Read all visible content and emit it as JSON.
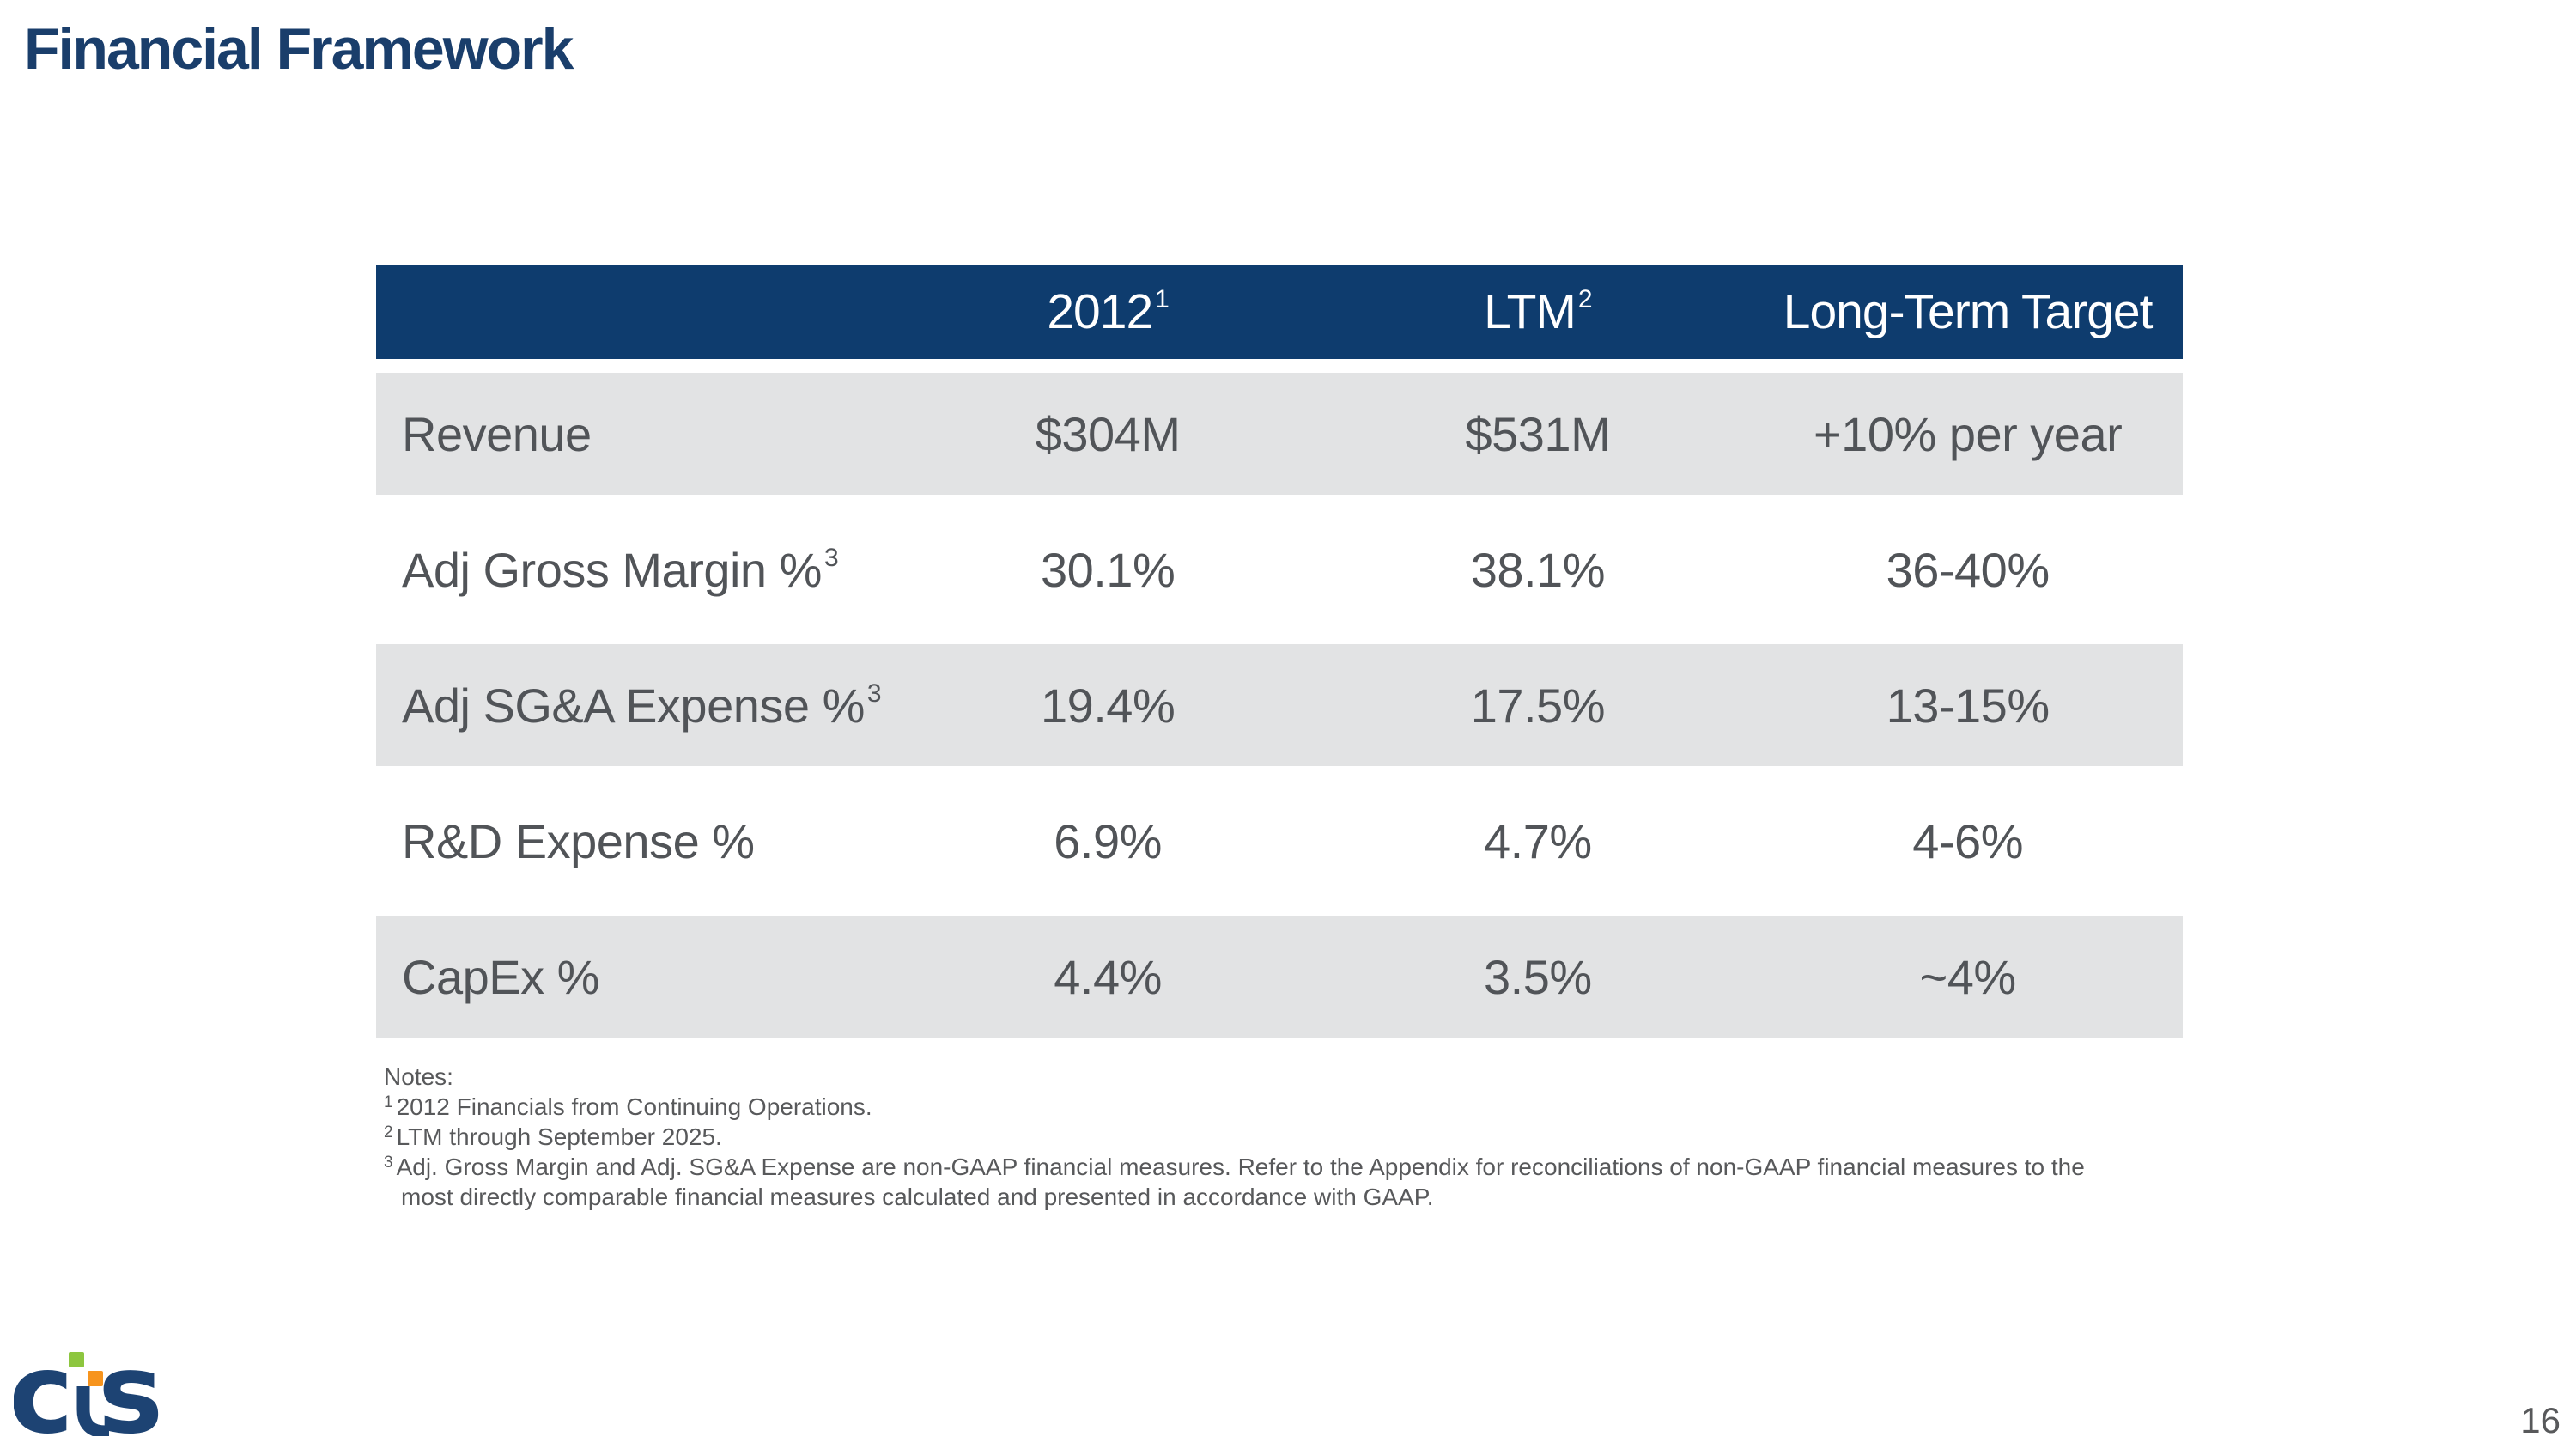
{
  "slide": {
    "title": "Financial Framework",
    "page_number": "16"
  },
  "colors": {
    "header_navy": "#0e3c6e",
    "title_navy": "#1a3e6b",
    "band_gray": "#e2e3e4",
    "body_text_gray": "#515458",
    "note_gray": "#58595b",
    "logo_navy": "#1d4373",
    "logo_green": "#8dc63f",
    "logo_orange": "#f7941d"
  },
  "table": {
    "columns": [
      {
        "label": "",
        "sup": ""
      },
      {
        "label": "2012",
        "sup": "1"
      },
      {
        "label": "LTM",
        "sup": "2"
      },
      {
        "label": "Long-Term Target",
        "sup": ""
      }
    ],
    "rows": [
      {
        "label": "Revenue",
        "sup": "",
        "values": [
          "$304M",
          "$531M",
          "+10% per year"
        ],
        "shaded": true
      },
      {
        "label": "Adj Gross Margin %",
        "sup": "3",
        "values": [
          "30.1%",
          "38.1%",
          "36-40%"
        ],
        "shaded": false
      },
      {
        "label": "Adj SG&A Expense %",
        "sup": "3",
        "values": [
          "19.4%",
          "17.5%",
          "13-15%"
        ],
        "shaded": true
      },
      {
        "label": "R&D Expense %",
        "sup": "",
        "values": [
          "6.9%",
          "4.7%",
          "4-6%"
        ],
        "shaded": false
      },
      {
        "label": "CapEx %",
        "sup": "",
        "values": [
          "4.4%",
          "3.5%",
          "~4%"
        ],
        "shaded": true
      }
    ]
  },
  "notes": {
    "heading": "Notes:",
    "items": [
      {
        "sup": "1",
        "text": "2012 Financials from Continuing Operations."
      },
      {
        "sup": "2",
        "text": "LTM through September 2025."
      },
      {
        "sup": "3",
        "text": "Adj. Gross Margin and Adj. SG&A Expense are non-GAAP financial measures. Refer to the Appendix for reconciliations of non-GAAP financial measures to the most directly comparable financial measures calculated and presented in accordance with GAAP."
      }
    ]
  },
  "logo": {
    "letters": [
      "c",
      "t",
      "s"
    ]
  }
}
